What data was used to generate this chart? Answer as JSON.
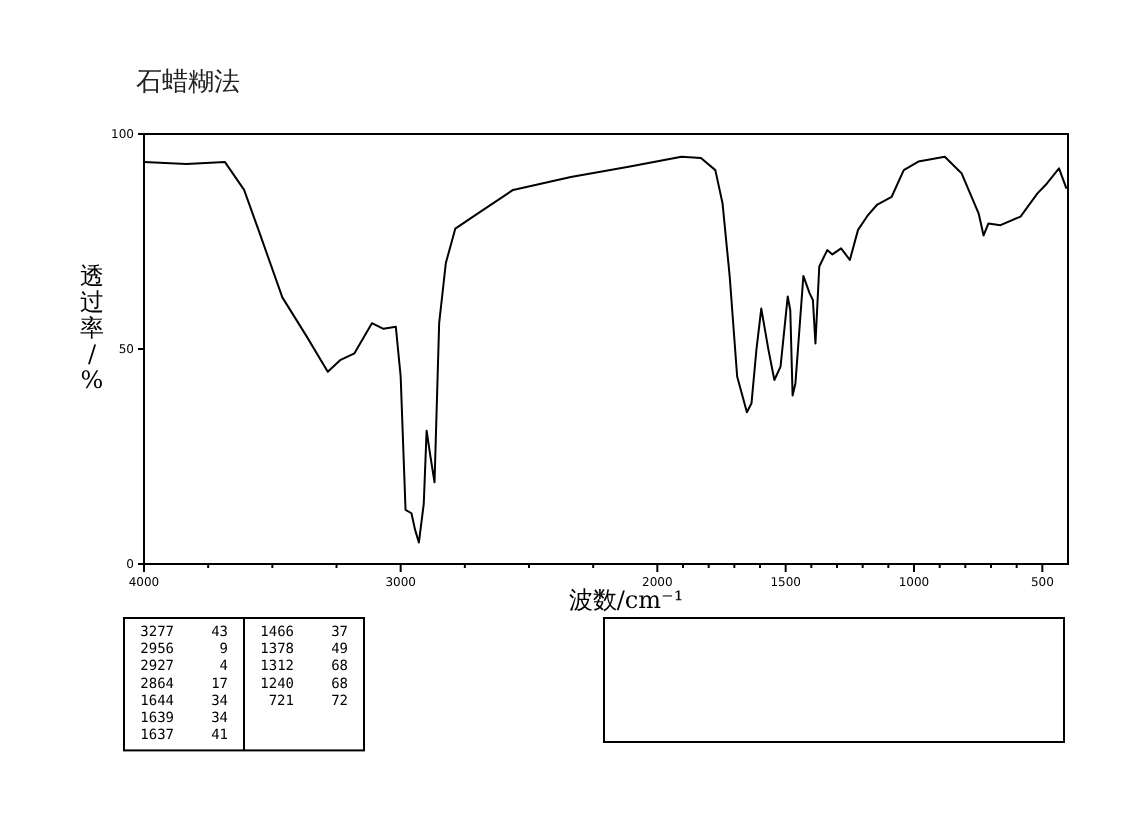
{
  "chart_data": {
    "type": "line",
    "title": "石蜡糊法",
    "xlabel": "波数/cm⁻¹",
    "ylabel": "透过率/%",
    "xlim": [
      4000,
      400
    ],
    "ylim": [
      0,
      100
    ],
    "xticks": [
      4000,
      {
        "value": 3750,
        "label": null
      },
      {
        "value": 3500,
        "label": null
      },
      {
        "value": 3250,
        "label": null
      },
      3000,
      {
        "value": 2750,
        "label": null
      },
      {
        "value": 2500,
        "label": null
      },
      {
        "value": 2250,
        "label": null
      },
      2000,
      {
        "value": 1900,
        "label": null
      },
      {
        "value": 1800,
        "label": null
      },
      {
        "value": 1700,
        "label": null
      },
      {
        "value": 1600,
        "label": null
      },
      1500,
      {
        "value": 1400,
        "label": null
      },
      {
        "value": 1300,
        "label": null
      },
      {
        "value": 1200,
        "label": null
      },
      {
        "value": 1100,
        "label": null
      },
      1000,
      {
        "value": 900,
        "label": null
      },
      {
        "value": 800,
        "label": null
      },
      {
        "value": 700,
        "label": null
      },
      {
        "value": 600,
        "label": null
      },
      500
    ],
    "yticks": [
      0,
      50,
      100
    ],
    "grid": false,
    "marker": "none",
    "line_style": "solid",
    "series": [
      {
        "color": "#000000",
        "x": [
          4000,
          3835,
          3685,
          3610,
          3554,
          3461,
          3367,
          3284,
          3236,
          3180,
          3112,
          3067,
          3019,
          3000,
          2981,
          2958,
          2944,
          2929,
          2910,
          2899,
          2884,
          2868,
          2850,
          2824,
          2787,
          2712,
          2562,
          2337,
          2112,
          1906,
          1830,
          1774,
          1746,
          1718,
          1689,
          1651,
          1633,
          1614,
          1595,
          1567,
          1544,
          1520,
          1492,
          1482,
          1473,
          1462,
          1431,
          1407,
          1394,
          1384,
          1369,
          1338,
          1318,
          1284,
          1250,
          1218,
          1181,
          1143,
          1087,
          1040,
          983,
          880,
          814,
          748,
          729,
          710,
          663,
          585,
          519,
          482,
          435,
          406
        ],
        "values": [
          93.5,
          93,
          93.5,
          87,
          77.7,
          62,
          53,
          44.7,
          47.4,
          49,
          56,
          54.7,
          55.2,
          43.6,
          12.6,
          11.8,
          8,
          5,
          14,
          31,
          25,
          19,
          56,
          70,
          78,
          81,
          87,
          90,
          92.4,
          94.7,
          94.4,
          91.6,
          83.9,
          66.8,
          43.6,
          35.3,
          37.4,
          49.8,
          59.4,
          49.8,
          42.8,
          45.9,
          62.2,
          59,
          39.2,
          42,
          67,
          63,
          61.4,
          51.3,
          69.2,
          73,
          72,
          73.4,
          70.7,
          77.7,
          81,
          83.6,
          85.4,
          91.6,
          93.6,
          94.7,
          90.8,
          81.5,
          76.4,
          79.2,
          78.8,
          80.8,
          86.2,
          88.5,
          92,
          87.3
        ]
      }
    ],
    "annotations": [
      "3277 43",
      "2956 9",
      "2927 4",
      "2864 17",
      "1644 34",
      "1639 34",
      "1637 41",
      "1466 37",
      "1378 49",
      "1312 68",
      "1240 68",
      "721 72"
    ]
  }
}
